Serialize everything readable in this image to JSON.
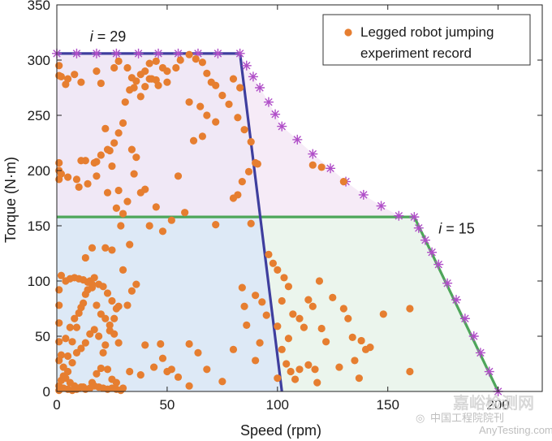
{
  "chart_data": {
    "type": "scatter",
    "xlabel": "Speed (rpm)",
    "ylabel": "Torque (N·m)",
    "xlim": [
      0,
      220
    ],
    "ylim": [
      0,
      350
    ],
    "xticks": [
      0,
      50,
      100,
      150,
      200
    ],
    "yticks": [
      0,
      50,
      100,
      150,
      200,
      250,
      300,
      350
    ],
    "grid": false,
    "legend": {
      "position": "top-right",
      "line1": "Legged robot jumping",
      "line2": "experiment record",
      "color": "#E67E30"
    },
    "annotations": [
      {
        "label": "i",
        "suffix": " = 29",
        "x": 15,
        "y": 317
      },
      {
        "label": "i",
        "suffix": " = 15",
        "x": 173,
        "y": 143
      }
    ],
    "curves": [
      {
        "name": "i = 29 motor boundary",
        "color": "#3E3E9E",
        "fill": "#EDE7F6",
        "points": [
          [
            0,
            306
          ],
          [
            83,
            306
          ],
          [
            102,
            0
          ]
        ]
      },
      {
        "name": "i = 15 motor boundary",
        "color": "#4EA65A",
        "fill": "#EAF5EC",
        "points": [
          [
            0,
            158
          ],
          [
            162,
            158
          ],
          [
            200,
            0
          ]
        ]
      },
      {
        "name": "combined envelope",
        "marker": "*",
        "color": "#B04FC8",
        "points": [
          [
            0,
            306
          ],
          [
            9,
            306
          ],
          [
            18,
            306
          ],
          [
            27,
            306
          ],
          [
            37,
            306
          ],
          [
            46,
            306
          ],
          [
            55,
            306
          ],
          [
            64,
            306
          ],
          [
            73,
            306
          ],
          [
            83,
            306
          ],
          [
            86,
            295
          ],
          [
            89,
            285
          ],
          [
            92,
            275
          ],
          [
            96,
            262
          ],
          [
            99,
            251
          ],
          [
            102,
            240
          ],
          [
            109,
            228
          ],
          [
            116,
            215
          ],
          [
            124,
            202
          ],
          [
            131,
            190
          ],
          [
            139,
            178
          ],
          [
            147,
            168
          ],
          [
            155,
            159
          ],
          [
            162,
            158
          ],
          [
            164,
            148
          ],
          [
            167,
            137
          ],
          [
            170,
            126
          ],
          [
            173,
            115
          ],
          [
            177,
            98
          ],
          [
            181,
            83
          ],
          [
            185,
            66
          ],
          [
            189,
            50
          ],
          [
            192,
            35
          ],
          [
            196,
            18
          ],
          [
            200,
            0
          ]
        ]
      }
    ],
    "series": [
      {
        "name": "Legged robot jumping experiment record",
        "color": "#E67E30",
        "points": [
          [
            1,
            295
          ],
          [
            1,
            286
          ],
          [
            2,
            285
          ],
          [
            5,
            283
          ],
          [
            8,
            287
          ],
          [
            11,
            280
          ],
          [
            4,
            278
          ],
          [
            18,
            290
          ],
          [
            20,
            279
          ],
          [
            26,
            293
          ],
          [
            28,
            299
          ],
          [
            32,
            293
          ],
          [
            34,
            284
          ],
          [
            36,
            281
          ],
          [
            38,
            287
          ],
          [
            40,
            290
          ],
          [
            42,
            297
          ],
          [
            43,
            283
          ],
          [
            45,
            299
          ],
          [
            46,
            277
          ],
          [
            48,
            293
          ],
          [
            50,
            290
          ],
          [
            54,
            293
          ],
          [
            56,
            300
          ],
          [
            60,
            305
          ],
          [
            63,
            301
          ],
          [
            66,
            298
          ],
          [
            68,
            288
          ],
          [
            70,
            280
          ],
          [
            72,
            277
          ],
          [
            75,
            268
          ],
          [
            80,
            283
          ],
          [
            83,
            275
          ],
          [
            35,
            275
          ],
          [
            38,
            267
          ],
          [
            31,
            262
          ],
          [
            33,
            273
          ],
          [
            40,
            276
          ],
          [
            42,
            283
          ],
          [
            45,
            282
          ],
          [
            50,
            280
          ],
          [
            60,
            262
          ],
          [
            65,
            258
          ],
          [
            68,
            250
          ],
          [
            72,
            244
          ],
          [
            78,
            260
          ],
          [
            82,
            248
          ],
          [
            85,
            237
          ],
          [
            88,
            226
          ],
          [
            90,
            207
          ],
          [
            91,
            206
          ],
          [
            87,
            199
          ],
          [
            84,
            190
          ],
          [
            82,
            178
          ],
          [
            80,
            175
          ],
          [
            72,
            151
          ],
          [
            30,
            243
          ],
          [
            22,
            238
          ],
          [
            23,
            219
          ],
          [
            24,
            218
          ],
          [
            20,
            214
          ],
          [
            18,
            208
          ],
          [
            17,
            207
          ],
          [
            13,
            209
          ],
          [
            11,
            209
          ],
          [
            9,
            192
          ],
          [
            5,
            194
          ],
          [
            2,
            197
          ],
          [
            1,
            207
          ],
          [
            1,
            200
          ],
          [
            1,
            192
          ],
          [
            10,
            185
          ],
          [
            14,
            188
          ],
          [
            18,
            195
          ],
          [
            25,
            204
          ],
          [
            28,
            182
          ],
          [
            30,
            161
          ],
          [
            32,
            172
          ],
          [
            35,
            197
          ],
          [
            38,
            180
          ],
          [
            40,
            183
          ],
          [
            36,
            212
          ],
          [
            34,
            219
          ],
          [
            28,
            234
          ],
          [
            26,
            225
          ],
          [
            23,
            180
          ],
          [
            27,
            166
          ],
          [
            45,
            167
          ],
          [
            48,
            145
          ],
          [
            52,
            155
          ],
          [
            58,
            162
          ],
          [
            42,
            150
          ],
          [
            55,
            195
          ],
          [
            62,
            227
          ],
          [
            66,
            231
          ],
          [
            88,
            152
          ],
          [
            29,
            150
          ],
          [
            13,
            121
          ],
          [
            16,
            130
          ],
          [
            22,
            130
          ],
          [
            25,
            128
          ],
          [
            30,
            110
          ],
          [
            33,
            133
          ],
          [
            36,
            97
          ],
          [
            34,
            91
          ],
          [
            32,
            78
          ],
          [
            28,
            77
          ],
          [
            26,
            66
          ],
          [
            24,
            55
          ],
          [
            22,
            42
          ],
          [
            20,
            21
          ],
          [
            18,
            16
          ],
          [
            16,
            8
          ],
          [
            12,
            4
          ],
          [
            10,
            3
          ],
          [
            8,
            5
          ],
          [
            6,
            8
          ],
          [
            4,
            12
          ],
          [
            2,
            10
          ],
          [
            1,
            5
          ],
          [
            1,
            1
          ],
          [
            3,
            3
          ],
          [
            5,
            2
          ],
          [
            7,
            1
          ],
          [
            9,
            2
          ],
          [
            11,
            4
          ],
          [
            13,
            2
          ],
          [
            15,
            3
          ],
          [
            17,
            5
          ],
          [
            19,
            4
          ],
          [
            21,
            3
          ],
          [
            23,
            2
          ],
          [
            25,
            3
          ],
          [
            27,
            2
          ],
          [
            29,
            1
          ],
          [
            3,
            22
          ],
          [
            5,
            32
          ],
          [
            7,
            45
          ],
          [
            9,
            58
          ],
          [
            11,
            76
          ],
          [
            13,
            88
          ],
          [
            15,
            100
          ],
          [
            17,
            103
          ],
          [
            19,
            97
          ],
          [
            21,
            95
          ],
          [
            23,
            89
          ],
          [
            25,
            82
          ],
          [
            27,
            75
          ],
          [
            2,
            33
          ],
          [
            4,
            48
          ],
          [
            6,
            58
          ],
          [
            8,
            66
          ],
          [
            10,
            71
          ],
          [
            12,
            80
          ],
          [
            14,
            92
          ],
          [
            16,
            94
          ],
          [
            18,
            78
          ],
          [
            20,
            70
          ],
          [
            22,
            66
          ],
          [
            24,
            60
          ],
          [
            26,
            52
          ],
          [
            28,
            44
          ],
          [
            4,
            100
          ],
          [
            6,
            102
          ],
          [
            8,
            103
          ],
          [
            10,
            102
          ],
          [
            12,
            101
          ],
          [
            14,
            99
          ],
          [
            16,
            97
          ],
          [
            2,
            105
          ],
          [
            1,
            92
          ],
          [
            1,
            78
          ],
          [
            1,
            62
          ],
          [
            1,
            45
          ],
          [
            1,
            28
          ],
          [
            3,
            14
          ],
          [
            5,
            18
          ],
          [
            7,
            26
          ],
          [
            9,
            35
          ],
          [
            11,
            39
          ],
          [
            13,
            44
          ],
          [
            15,
            52
          ],
          [
            17,
            56
          ],
          [
            19,
            50
          ],
          [
            21,
            35
          ],
          [
            23,
            20
          ],
          [
            25,
            11
          ],
          [
            27,
            8
          ],
          [
            30,
            3
          ],
          [
            33,
            18
          ],
          [
            40,
            42
          ],
          [
            47,
            43
          ],
          [
            48,
            30
          ],
          [
            50,
            18
          ],
          [
            52,
            20
          ],
          [
            55,
            13
          ],
          [
            60,
            43
          ],
          [
            64,
            35
          ],
          [
            68,
            20
          ],
          [
            85,
            77
          ],
          [
            90,
            87
          ],
          [
            93,
            81
          ],
          [
            95,
            69
          ],
          [
            100,
            59
          ],
          [
            102,
            38
          ],
          [
            104,
            25
          ],
          [
            106,
            18
          ],
          [
            108,
            11
          ],
          [
            110,
            20
          ],
          [
            114,
            24
          ],
          [
            118,
            8
          ],
          [
            96,
            124
          ],
          [
            98,
            116
          ],
          [
            100,
            110
          ],
          [
            103,
            103
          ],
          [
            105,
            95
          ],
          [
            110,
            66
          ],
          [
            114,
            83
          ],
          [
            116,
            77
          ],
          [
            119,
            100
          ],
          [
            125,
            85
          ],
          [
            130,
            75
          ],
          [
            132,
            66
          ],
          [
            134,
            49
          ],
          [
            135,
            28
          ],
          [
            137,
            12
          ],
          [
            140,
            38
          ],
          [
            138,
            46
          ],
          [
            142,
            40
          ],
          [
            148,
            70
          ],
          [
            160,
            18
          ],
          [
            160,
            75
          ],
          [
            120,
            57
          ],
          [
            128,
            22
          ],
          [
            122,
            45
          ],
          [
            120,
            203
          ],
          [
            130,
            190
          ],
          [
            116,
            205
          ],
          [
            102,
            82
          ],
          [
            107,
            70
          ],
          [
            112,
            58
          ],
          [
            80,
            38
          ],
          [
            90,
            28
          ],
          [
            84,
            94
          ],
          [
            86,
            60
          ],
          [
            38,
            15
          ],
          [
            44,
            22
          ],
          [
            60,
            5
          ],
          [
            75,
            9
          ],
          [
            92,
            44
          ],
          [
            117,
            20
          ],
          [
            100,
            12
          ],
          [
            105,
            48
          ]
        ]
      }
    ]
  },
  "watermark": {
    "mark_glyph": "◎",
    "main": "中国工程院院刊",
    "big": "嘉峪检测网",
    "url": "AnyTesting.com"
  }
}
